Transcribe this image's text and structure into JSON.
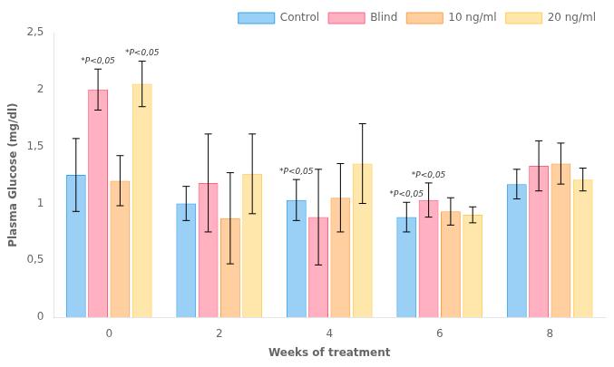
{
  "chart_data": {
    "type": "bar",
    "xlabel": "Weeks of treatment",
    "ylabel": "Plasma Glucose (mg/dl)",
    "categories": [
      "0",
      "2",
      "4",
      "6",
      "8"
    ],
    "series": [
      {
        "name": "Control",
        "values": [
          1.25,
          1.0,
          1.03,
          0.88,
          1.17
        ],
        "errors": [
          0.32,
          0.15,
          0.18,
          0.13,
          0.13
        ]
      },
      {
        "name": "Blind",
        "values": [
          2.0,
          1.18,
          0.88,
          1.03,
          1.33
        ],
        "errors": [
          0.18,
          0.43,
          0.42,
          0.15,
          0.22
        ]
      },
      {
        "name": "10 ng/ml",
        "values": [
          1.2,
          0.87,
          1.05,
          0.93,
          1.35
        ],
        "errors": [
          0.22,
          0.4,
          0.3,
          0.12,
          0.18
        ]
      },
      {
        "name": "20 ng/ml",
        "values": [
          2.05,
          1.26,
          1.35,
          0.9,
          1.21
        ],
        "errors": [
          0.2,
          0.35,
          0.35,
          0.07,
          0.1
        ]
      }
    ],
    "annotations": [
      {
        "text": "*P<0,05",
        "category": "0",
        "series": "Blind"
      },
      {
        "text": "*P<0,05",
        "category": "0",
        "series": "20 ng/ml"
      },
      {
        "text": "*P<0,05",
        "category": "4",
        "series": "Control"
      },
      {
        "text": "*P<0,05",
        "category": "6",
        "series": "Control"
      },
      {
        "text": "*P<0,05",
        "category": "6",
        "series": "Blind"
      }
    ],
    "ylim": [
      0,
      2.5
    ],
    "yticks": [
      0,
      {
        "value": 0.5,
        "label": "0,5"
      },
      1,
      {
        "value": 1.5,
        "label": "1,5"
      },
      2,
      {
        "value": 2.5,
        "label": "2,5"
      }
    ],
    "grid": false,
    "legend": "upper right"
  }
}
